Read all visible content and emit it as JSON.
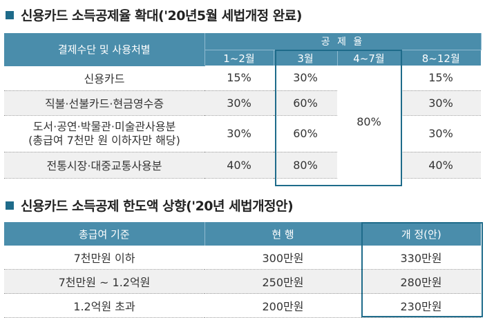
{
  "table1": {
    "title": "신용카드 소득공제율 확대('20년5월 세법개정 완료)",
    "header_method": "결제수단 및 사용처별",
    "header_group": "공 제 율",
    "periods": [
      "1~2월",
      "3월",
      "4~7월",
      "8~12월"
    ],
    "rows": [
      {
        "label": "신용카드",
        "jan_feb": "15%",
        "mar": "30%",
        "sep_dec": "15%"
      },
      {
        "label": "직불·선불카드·현금영수증",
        "jan_feb": "30%",
        "mar": "60%",
        "sep_dec": "30%"
      },
      {
        "label_line1": "도서·공연·박물관·미술관사용분",
        "label_line2": "(총급여 7천만 원 이하자만 해당)",
        "jan_feb": "30%",
        "mar": "60%",
        "sep_dec": "30%"
      },
      {
        "label": "전통시장·대중교통사용분",
        "jan_feb": "40%",
        "mar": "80%",
        "sep_dec": "40%"
      }
    ],
    "apr_jul_all": "80%"
  },
  "table2": {
    "title": "신용카드 소득공제 한도액 상향('20년 세법개정안)",
    "headers": [
      "총급여 기준",
      "현 행",
      "개 정(안)"
    ],
    "rows": [
      {
        "basis": "7천만원 이하",
        "current": "300만원",
        "revised": "330만원"
      },
      {
        "basis": "7천만원 ~ 1.2억원",
        "current": "250만원",
        "revised": "280만원"
      },
      {
        "basis": "1.2억원 초과",
        "current": "200만원",
        "revised": "230만원"
      }
    ]
  },
  "colors": {
    "header_bg": "#4a8dab",
    "highlight_border": "#1e6b8a",
    "bullet": "#1e6b8a",
    "row_alt": "#f0f0f0"
  }
}
